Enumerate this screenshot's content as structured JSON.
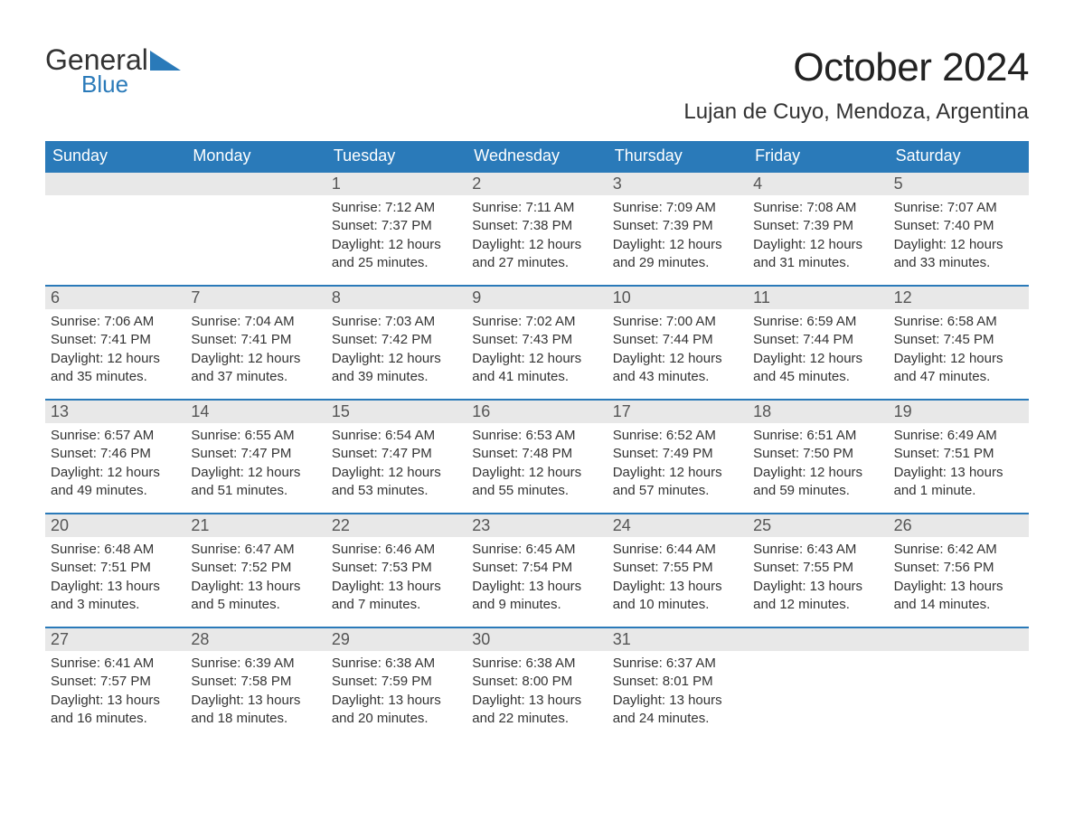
{
  "brand": {
    "name1": "General",
    "name2": "Blue"
  },
  "title": "October 2024",
  "location": "Lujan de Cuyo, Mendoza, Argentina",
  "colors": {
    "header_bg": "#2a7ab9",
    "header_text": "#ffffff",
    "daynum_bg": "#e8e8e8",
    "body_text": "#333333",
    "page_bg": "#ffffff"
  },
  "typography": {
    "title_fontsize": 44,
    "location_fontsize": 24,
    "dow_fontsize": 18,
    "daynum_fontsize": 18,
    "body_fontsize": 15
  },
  "days_of_week": [
    "Sunday",
    "Monday",
    "Tuesday",
    "Wednesday",
    "Thursday",
    "Friday",
    "Saturday"
  ],
  "calendar": {
    "leading_blanks": 2,
    "days": [
      {
        "n": 1,
        "sunrise": "7:12 AM",
        "sunset": "7:37 PM",
        "daylight": "12 hours and 25 minutes."
      },
      {
        "n": 2,
        "sunrise": "7:11 AM",
        "sunset": "7:38 PM",
        "daylight": "12 hours and 27 minutes."
      },
      {
        "n": 3,
        "sunrise": "7:09 AM",
        "sunset": "7:39 PM",
        "daylight": "12 hours and 29 minutes."
      },
      {
        "n": 4,
        "sunrise": "7:08 AM",
        "sunset": "7:39 PM",
        "daylight": "12 hours and 31 minutes."
      },
      {
        "n": 5,
        "sunrise": "7:07 AM",
        "sunset": "7:40 PM",
        "daylight": "12 hours and 33 minutes."
      },
      {
        "n": 6,
        "sunrise": "7:06 AM",
        "sunset": "7:41 PM",
        "daylight": "12 hours and 35 minutes."
      },
      {
        "n": 7,
        "sunrise": "7:04 AM",
        "sunset": "7:41 PM",
        "daylight": "12 hours and 37 minutes."
      },
      {
        "n": 8,
        "sunrise": "7:03 AM",
        "sunset": "7:42 PM",
        "daylight": "12 hours and 39 minutes."
      },
      {
        "n": 9,
        "sunrise": "7:02 AM",
        "sunset": "7:43 PM",
        "daylight": "12 hours and 41 minutes."
      },
      {
        "n": 10,
        "sunrise": "7:00 AM",
        "sunset": "7:44 PM",
        "daylight": "12 hours and 43 minutes."
      },
      {
        "n": 11,
        "sunrise": "6:59 AM",
        "sunset": "7:44 PM",
        "daylight": "12 hours and 45 minutes."
      },
      {
        "n": 12,
        "sunrise": "6:58 AM",
        "sunset": "7:45 PM",
        "daylight": "12 hours and 47 minutes."
      },
      {
        "n": 13,
        "sunrise": "6:57 AM",
        "sunset": "7:46 PM",
        "daylight": "12 hours and 49 minutes."
      },
      {
        "n": 14,
        "sunrise": "6:55 AM",
        "sunset": "7:47 PM",
        "daylight": "12 hours and 51 minutes."
      },
      {
        "n": 15,
        "sunrise": "6:54 AM",
        "sunset": "7:47 PM",
        "daylight": "12 hours and 53 minutes."
      },
      {
        "n": 16,
        "sunrise": "6:53 AM",
        "sunset": "7:48 PM",
        "daylight": "12 hours and 55 minutes."
      },
      {
        "n": 17,
        "sunrise": "6:52 AM",
        "sunset": "7:49 PM",
        "daylight": "12 hours and 57 minutes."
      },
      {
        "n": 18,
        "sunrise": "6:51 AM",
        "sunset": "7:50 PM",
        "daylight": "12 hours and 59 minutes."
      },
      {
        "n": 19,
        "sunrise": "6:49 AM",
        "sunset": "7:51 PM",
        "daylight": "13 hours and 1 minute."
      },
      {
        "n": 20,
        "sunrise": "6:48 AM",
        "sunset": "7:51 PM",
        "daylight": "13 hours and 3 minutes."
      },
      {
        "n": 21,
        "sunrise": "6:47 AM",
        "sunset": "7:52 PM",
        "daylight": "13 hours and 5 minutes."
      },
      {
        "n": 22,
        "sunrise": "6:46 AM",
        "sunset": "7:53 PM",
        "daylight": "13 hours and 7 minutes."
      },
      {
        "n": 23,
        "sunrise": "6:45 AM",
        "sunset": "7:54 PM",
        "daylight": "13 hours and 9 minutes."
      },
      {
        "n": 24,
        "sunrise": "6:44 AM",
        "sunset": "7:55 PM",
        "daylight": "13 hours and 10 minutes."
      },
      {
        "n": 25,
        "sunrise": "6:43 AM",
        "sunset": "7:55 PM",
        "daylight": "13 hours and 12 minutes."
      },
      {
        "n": 26,
        "sunrise": "6:42 AM",
        "sunset": "7:56 PM",
        "daylight": "13 hours and 14 minutes."
      },
      {
        "n": 27,
        "sunrise": "6:41 AM",
        "sunset": "7:57 PM",
        "daylight": "13 hours and 16 minutes."
      },
      {
        "n": 28,
        "sunrise": "6:39 AM",
        "sunset": "7:58 PM",
        "daylight": "13 hours and 18 minutes."
      },
      {
        "n": 29,
        "sunrise": "6:38 AM",
        "sunset": "7:59 PM",
        "daylight": "13 hours and 20 minutes."
      },
      {
        "n": 30,
        "sunrise": "6:38 AM",
        "sunset": "8:00 PM",
        "daylight": "13 hours and 22 minutes."
      },
      {
        "n": 31,
        "sunrise": "6:37 AM",
        "sunset": "8:01 PM",
        "daylight": "13 hours and 24 minutes."
      }
    ],
    "trailing_blanks": 2
  },
  "labels": {
    "sunrise": "Sunrise:",
    "sunset": "Sunset:",
    "daylight": "Daylight:"
  }
}
